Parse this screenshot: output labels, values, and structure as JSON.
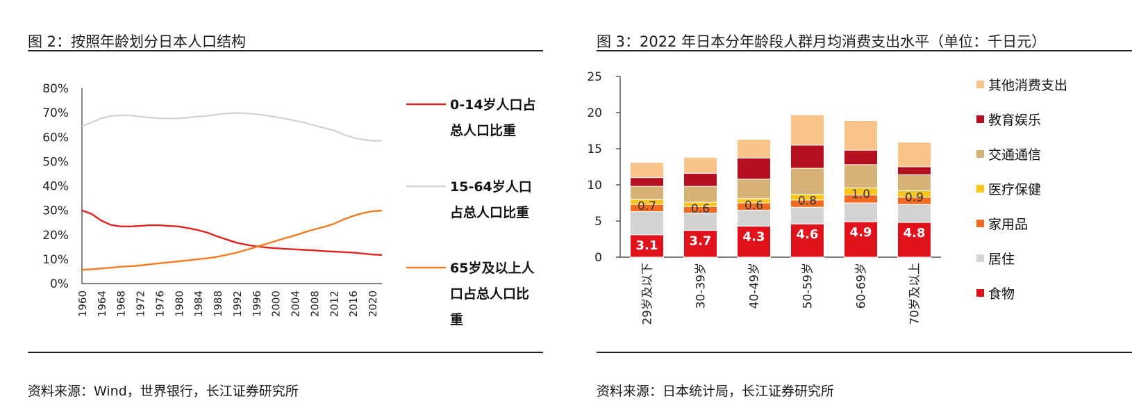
{
  "fig2": {
    "title": "图 2：按照年龄划分日本人口结构",
    "source": "资料来源：Wind，世界银行，长江证券研究所"
  },
  "fig3": {
    "title": "图 3：2022 年日本分年龄段人群月均消费支出水平（单位：千日元）",
    "source": "资料来源：日本统计局，长江证券研究所"
  },
  "chart_data": [
    {
      "type": "line",
      "title": "按照年龄划分日本人口结构",
      "ylim": [
        0,
        0.8
      ],
      "y_tick_labels": [
        "0%",
        "10%",
        "20%",
        "30%",
        "40%",
        "50%",
        "60%",
        "70%",
        "80%"
      ],
      "x_tick_labels": [
        "1960",
        "1964",
        "1968",
        "1972",
        "1976",
        "1980",
        "1984",
        "1988",
        "1992",
        "1996",
        "2000",
        "2004",
        "2008",
        "2012",
        "2016",
        "2020"
      ],
      "x": [
        1960,
        1962,
        1964,
        1966,
        1968,
        1970,
        1972,
        1974,
        1976,
        1978,
        1980,
        1982,
        1984,
        1986,
        1988,
        1990,
        1992,
        1994,
        1996,
        1998,
        2000,
        2002,
        2004,
        2006,
        2008,
        2010,
        2012,
        2014,
        2016,
        2018,
        2020,
        2022
      ],
      "series": [
        {
          "name": "0-14岁人口占总人口比重",
          "legend_lines": [
            "0-14岁人口占",
            "总人口比重"
          ],
          "color": "#e0231c",
          "values": [
            0.3,
            0.285,
            0.258,
            0.24,
            0.234,
            0.234,
            0.236,
            0.239,
            0.239,
            0.236,
            0.234,
            0.227,
            0.219,
            0.208,
            0.193,
            0.18,
            0.167,
            0.159,
            0.153,
            0.148,
            0.145,
            0.142,
            0.14,
            0.138,
            0.136,
            0.133,
            0.131,
            0.129,
            0.127,
            0.123,
            0.119,
            0.117
          ]
        },
        {
          "name": "15-64岁人口占总人口比重",
          "legend_lines": [
            "15-64岁人口",
            "占总人口比重"
          ],
          "color": "#d4d4d4",
          "values": [
            0.645,
            0.66,
            0.677,
            0.687,
            0.689,
            0.689,
            0.684,
            0.68,
            0.677,
            0.676,
            0.677,
            0.68,
            0.684,
            0.687,
            0.693,
            0.697,
            0.699,
            0.697,
            0.694,
            0.689,
            0.682,
            0.676,
            0.667,
            0.659,
            0.648,
            0.638,
            0.628,
            0.611,
            0.598,
            0.59,
            0.585,
            0.585
          ]
        },
        {
          "name": "65岁及以上人口占总人口比重",
          "legend_lines": [
            "65岁及以上人",
            "口占总人口比",
            "重"
          ],
          "color": "#f47a20",
          "values": [
            0.057,
            0.058,
            0.062,
            0.065,
            0.069,
            0.071,
            0.074,
            0.079,
            0.083,
            0.087,
            0.091,
            0.095,
            0.1,
            0.104,
            0.11,
            0.118,
            0.127,
            0.138,
            0.15,
            0.162,
            0.174,
            0.186,
            0.197,
            0.21,
            0.222,
            0.232,
            0.244,
            0.262,
            0.277,
            0.288,
            0.296,
            0.299
          ]
        }
      ]
    },
    {
      "type": "bar",
      "stacked": true,
      "title": "2022 年日本分年龄段人群月均消费支出水平（单位：千日元）",
      "ylim": [
        0,
        25
      ],
      "y_ticks": [
        0,
        5,
        10,
        15,
        20,
        25
      ],
      "categories": [
        "29岁及以下",
        "30-39岁",
        "40-49岁",
        "50-59岁",
        "60-69岁",
        "70岁及以上"
      ],
      "series": [
        {
          "name": "食物",
          "color": "#e0121c",
          "values": [
            3.1,
            3.7,
            4.3,
            4.6,
            4.9,
            4.8
          ],
          "show_labels": true
        },
        {
          "name": "居住",
          "color": "#d3d3d3",
          "values": [
            3.2,
            2.4,
            2.2,
            2.3,
            2.6,
            2.5
          ]
        },
        {
          "name": "家用品",
          "color": "#f26a1f",
          "values": [
            1.0,
            0.9,
            1.0,
            1.0,
            1.1,
            1.0
          ]
        },
        {
          "name": "医疗保健",
          "color": "#fbc51e",
          "values": [
            0.7,
            0.6,
            0.6,
            0.8,
            1.0,
            0.9
          ],
          "show_labels": true
        },
        {
          "name": "交通通信",
          "color": "#d6b277",
          "values": [
            1.8,
            2.2,
            2.7,
            3.6,
            3.2,
            2.2
          ]
        },
        {
          "name": "教育娱乐",
          "color": "#b5101f",
          "values": [
            1.2,
            1.8,
            2.9,
            3.2,
            2.0,
            1.1
          ]
        },
        {
          "name": "其他消费支出",
          "color": "#f8c48c",
          "values": [
            2.1,
            2.2,
            2.6,
            4.2,
            4.1,
            3.4
          ]
        }
      ],
      "legend_order": [
        "其他消费支出",
        "教育娱乐",
        "交通通信",
        "医疗保健",
        "家用品",
        "居住",
        "食物"
      ]
    }
  ]
}
